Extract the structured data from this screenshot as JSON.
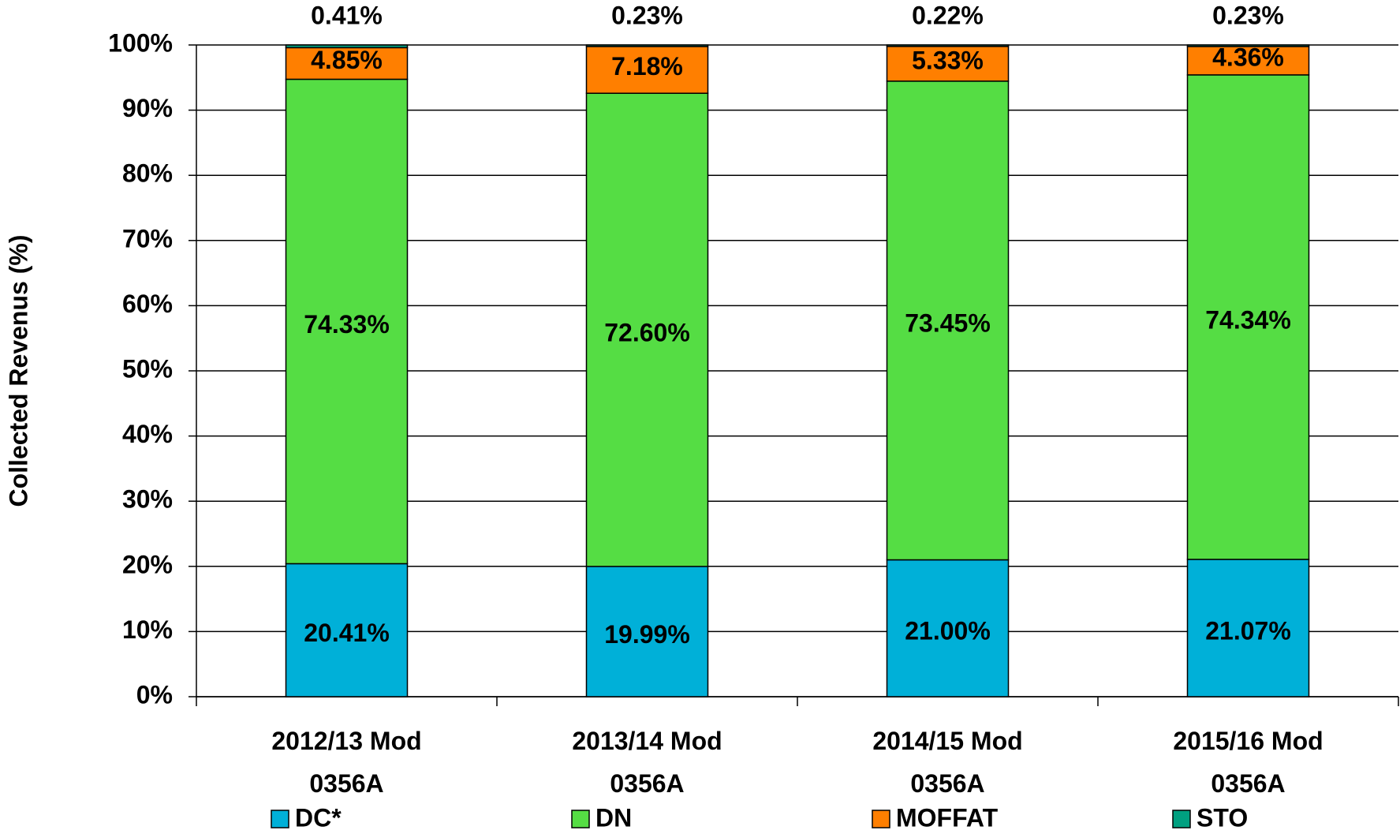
{
  "chart_data": {
    "type": "stacked_bar",
    "y_label": "Collected Revenus (%)",
    "categories": [
      "2012/13 Mod 0356A",
      "2013/14 Mod 0356A",
      "2014/15 Mod 0356A",
      "2015/16 Mod 0356A"
    ],
    "series": [
      {
        "name": "DC*",
        "color": "#00b0d8",
        "values": [
          20.41,
          19.99,
          21.0,
          21.07
        ],
        "value_labels": [
          "20.41%",
          "19.99%",
          "21.00%",
          "21.07%"
        ]
      },
      {
        "name": "DN",
        "color": "#55dd44",
        "values": [
          74.33,
          72.6,
          73.45,
          74.34
        ],
        "value_labels": [
          "74.33%",
          "72.60%",
          "73.45%",
          "74.34%"
        ]
      },
      {
        "name": "MOFFAT",
        "color": "#ff7f00",
        "values": [
          4.85,
          7.18,
          5.33,
          4.36
        ],
        "value_labels": [
          "4.85%",
          "7.18%",
          "5.33%",
          "4.36%"
        ]
      },
      {
        "name": "STO",
        "color": "#00a080",
        "values": [
          0.41,
          0.23,
          0.22,
          0.23
        ],
        "value_labels": [
          "0.41%",
          "0.23%",
          "0.22%",
          "0.23%"
        ]
      }
    ],
    "ylim": [
      0,
      100
    ],
    "yticks": [
      {
        "value": 0,
        "label": "0%"
      },
      {
        "value": 10,
        "label": "10%"
      },
      {
        "value": 20,
        "label": "20%"
      },
      {
        "value": 30,
        "label": "30%"
      },
      {
        "value": 40,
        "label": "40%"
      },
      {
        "value": 50,
        "label": "50%"
      },
      {
        "value": 60,
        "label": "60%"
      },
      {
        "value": 70,
        "label": "70%"
      },
      {
        "value": 80,
        "label": "80%"
      },
      {
        "value": 90,
        "label": "90%"
      },
      {
        "value": 100,
        "label": "100%"
      }
    ],
    "grid": true,
    "legend": "bottom"
  }
}
